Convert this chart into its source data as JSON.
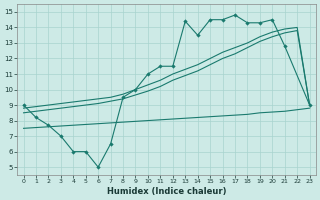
{
  "xlabel": "Humidex (Indice chaleur)",
  "xlim": [
    -0.5,
    23.5
  ],
  "ylim": [
    4.5,
    15.5
  ],
  "xticks": [
    0,
    1,
    2,
    3,
    4,
    5,
    6,
    7,
    8,
    9,
    10,
    11,
    12,
    13,
    14,
    15,
    16,
    17,
    18,
    19,
    20,
    21,
    22,
    23
  ],
  "yticks": [
    5,
    6,
    7,
    8,
    9,
    10,
    11,
    12,
    13,
    14,
    15
  ],
  "bg_color": "#cdeae6",
  "grid_color": "#a8d4ce",
  "line_color": "#1a7a6e",
  "jagged_x": [
    0,
    1,
    2,
    3,
    4,
    5,
    6,
    7,
    8,
    9,
    10,
    11,
    12,
    13,
    14,
    15,
    16,
    17,
    18,
    19,
    20,
    21,
    23
  ],
  "jagged_y": [
    9.0,
    8.2,
    7.7,
    7.0,
    6.0,
    6.0,
    5.0,
    6.5,
    9.5,
    10.0,
    11.0,
    11.5,
    11.5,
    14.4,
    13.5,
    14.5,
    14.5,
    14.8,
    14.3,
    14.3,
    14.5,
    12.8,
    9.0
  ],
  "smooth_line1_x": [
    0,
    1,
    2,
    3,
    4,
    5,
    6,
    7,
    8,
    9,
    10,
    11,
    12,
    13,
    14,
    15,
    16,
    17,
    18,
    19,
    20,
    21,
    22,
    23
  ],
  "smooth_line1_y": [
    8.8,
    8.9,
    9.0,
    9.1,
    9.2,
    9.3,
    9.4,
    9.5,
    9.7,
    10.0,
    10.3,
    10.6,
    11.0,
    11.3,
    11.6,
    12.0,
    12.4,
    12.7,
    13.0,
    13.4,
    13.7,
    13.9,
    14.0,
    9.0
  ],
  "smooth_line2_x": [
    0,
    1,
    2,
    3,
    4,
    5,
    6,
    7,
    8,
    9,
    10,
    11,
    12,
    13,
    14,
    15,
    16,
    17,
    18,
    19,
    20,
    21,
    22,
    23
  ],
  "smooth_line2_y": [
    8.5,
    8.6,
    8.7,
    8.8,
    8.9,
    9.0,
    9.1,
    9.25,
    9.4,
    9.65,
    9.9,
    10.2,
    10.6,
    10.9,
    11.2,
    11.6,
    12.0,
    12.3,
    12.7,
    13.1,
    13.4,
    13.65,
    13.8,
    9.0
  ],
  "flat_x": [
    0,
    1,
    2,
    3,
    4,
    5,
    6,
    7,
    8,
    9,
    10,
    11,
    12,
    13,
    14,
    15,
    16,
    17,
    18,
    19,
    20,
    21,
    22,
    23
  ],
  "flat_y": [
    7.5,
    7.55,
    7.6,
    7.65,
    7.7,
    7.75,
    7.8,
    7.85,
    7.9,
    7.95,
    8.0,
    8.05,
    8.1,
    8.15,
    8.2,
    8.25,
    8.3,
    8.35,
    8.4,
    8.5,
    8.55,
    8.6,
    8.7,
    8.8
  ]
}
